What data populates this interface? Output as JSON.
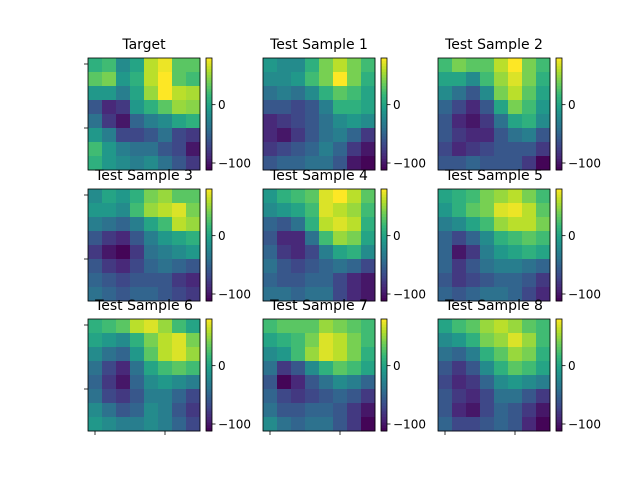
{
  "figure": {
    "colorscale": [
      "#440154",
      "#482878",
      "#3e4989",
      "#31688e",
      "#26828e",
      "#1f9e89",
      "#35b779",
      "#6ece58",
      "#b5de2b",
      "#fde725"
    ],
    "vmin": -112,
    "vmax": 80,
    "colorbar_ticks": [
      {
        "value": 0,
        "label": "0"
      },
      {
        "value": -100,
        "label": "−100"
      }
    ]
  },
  "chart_data": [
    {
      "type": "heatmap",
      "title": "Target",
      "grid": [
        [
          10,
          20,
          -20,
          0,
          60,
          75,
          30,
          30
        ],
        [
          30,
          40,
          -10,
          10,
          60,
          80,
          30,
          20
        ],
        [
          -10,
          -10,
          -30,
          0,
          50,
          80,
          60,
          55
        ],
        [
          -60,
          -90,
          -80,
          -10,
          10,
          30,
          50,
          45
        ],
        [
          -40,
          -80,
          -100,
          -50,
          -30,
          -20,
          0,
          10
        ],
        [
          -10,
          -30,
          -70,
          -70,
          -60,
          -40,
          -70,
          -80
        ],
        [
          20,
          -10,
          -30,
          -40,
          -40,
          -60,
          -70,
          -100
        ],
        [
          10,
          -10,
          -20,
          -30,
          -20,
          -40,
          -60,
          -80
        ]
      ]
    },
    {
      "type": "heatmap",
      "title": "Test Sample 1",
      "grid": [
        [
          -10,
          -20,
          -20,
          10,
          40,
          60,
          40,
          20
        ],
        [
          -20,
          -20,
          -10,
          20,
          40,
          80,
          40,
          10
        ],
        [
          -40,
          -30,
          -40,
          -20,
          10,
          30,
          20,
          0
        ],
        [
          -60,
          -60,
          -70,
          -60,
          -30,
          10,
          10,
          0
        ],
        [
          -90,
          -80,
          -70,
          -60,
          -40,
          -20,
          -10,
          -20
        ],
        [
          -90,
          -100,
          -80,
          -60,
          -40,
          -30,
          -50,
          -80
        ],
        [
          -80,
          -70,
          -60,
          -50,
          -30,
          -50,
          -80,
          -100
        ],
        [
          -60,
          -50,
          -50,
          -40,
          -40,
          -60,
          -100,
          -110
        ]
      ]
    },
    {
      "type": "heatmap",
      "title": "Test Sample 2",
      "grid": [
        [
          20,
          40,
          30,
          30,
          60,
          80,
          40,
          20
        ],
        [
          0,
          0,
          -20,
          20,
          50,
          70,
          40,
          10
        ],
        [
          -20,
          -40,
          -60,
          -20,
          40,
          60,
          30,
          0
        ],
        [
          -50,
          -70,
          -90,
          -60,
          0,
          40,
          20,
          -10
        ],
        [
          -60,
          -90,
          -100,
          -80,
          -40,
          0,
          10,
          -20
        ],
        [
          -60,
          -80,
          -90,
          -90,
          -60,
          -40,
          -30,
          -60
        ],
        [
          -70,
          -90,
          -80,
          -70,
          -60,
          -60,
          -60,
          -80
        ],
        [
          -60,
          -60,
          -50,
          -60,
          -60,
          -60,
          -80,
          -110
        ]
      ]
    },
    {
      "type": "heatmap",
      "title": "Test Sample 3",
      "grid": [
        [
          -20,
          0,
          -10,
          10,
          40,
          50,
          30,
          30
        ],
        [
          -10,
          -10,
          -20,
          20,
          50,
          60,
          70,
          40
        ],
        [
          -30,
          -40,
          -50,
          -30,
          0,
          20,
          60,
          50
        ],
        [
          -60,
          -80,
          -90,
          -60,
          -30,
          -10,
          0,
          10
        ],
        [
          -80,
          -100,
          -110,
          -80,
          -40,
          -30,
          -20,
          -10
        ],
        [
          -60,
          -80,
          -90,
          -70,
          -50,
          -40,
          -50,
          -60
        ],
        [
          -50,
          -60,
          -70,
          -60,
          -60,
          -60,
          -80,
          -90
        ],
        [
          -40,
          -50,
          -60,
          -50,
          -50,
          -60,
          -70,
          -80
        ]
      ]
    },
    {
      "type": "heatmap",
      "title": "Test Sample 4",
      "grid": [
        [
          -10,
          10,
          20,
          30,
          70,
          80,
          60,
          30
        ],
        [
          -20,
          -10,
          0,
          20,
          70,
          60,
          50,
          20
        ],
        [
          -50,
          -60,
          -40,
          10,
          60,
          70,
          60,
          10
        ],
        [
          -60,
          -90,
          -90,
          -40,
          20,
          50,
          40,
          0
        ],
        [
          -50,
          -80,
          -90,
          -70,
          -30,
          0,
          10,
          -20
        ],
        [
          -40,
          -60,
          -70,
          -60,
          -50,
          -40,
          -50,
          -70
        ],
        [
          -50,
          -60,
          -60,
          -50,
          -50,
          -70,
          -90,
          -100
        ],
        [
          -40,
          -40,
          -50,
          -40,
          -40,
          -70,
          -90,
          -100
        ]
      ]
    },
    {
      "type": "heatmap",
      "title": "Test Sample 5",
      "grid": [
        [
          0,
          10,
          20,
          40,
          50,
          60,
          40,
          20
        ],
        [
          -10,
          10,
          30,
          40,
          70,
          75,
          60,
          30
        ],
        [
          -30,
          -20,
          0,
          20,
          50,
          60,
          60,
          40
        ],
        [
          -50,
          -70,
          -50,
          -20,
          10,
          20,
          30,
          20
        ],
        [
          -50,
          -100,
          -80,
          -30,
          -10,
          0,
          10,
          0
        ],
        [
          -50,
          -80,
          -60,
          -40,
          -30,
          -30,
          -40,
          -50
        ],
        [
          -60,
          -80,
          -70,
          -60,
          -50,
          -50,
          -60,
          -80
        ],
        [
          -50,
          -60,
          -50,
          -40,
          -40,
          -50,
          -70,
          -90
        ]
      ]
    },
    {
      "type": "heatmap",
      "title": "Test Sample 6",
      "grid": [
        [
          10,
          20,
          30,
          60,
          70,
          50,
          20,
          0
        ],
        [
          0,
          -10,
          -20,
          10,
          40,
          60,
          70,
          40
        ],
        [
          -20,
          -40,
          -50,
          -10,
          30,
          60,
          70,
          50
        ],
        [
          -40,
          -70,
          -90,
          -40,
          0,
          20,
          30,
          20
        ],
        [
          -50,
          -80,
          -100,
          -50,
          -20,
          -10,
          -20,
          -30
        ],
        [
          -40,
          -70,
          -80,
          -60,
          -30,
          -30,
          -50,
          -70
        ],
        [
          -20,
          -40,
          -60,
          -50,
          -20,
          -30,
          -60,
          -80
        ],
        [
          -10,
          -20,
          -30,
          -30,
          -20,
          -30,
          -50,
          -70
        ]
      ]
    },
    {
      "type": "heatmap",
      "title": "Test Sample 7",
      "grid": [
        [
          20,
          30,
          30,
          30,
          50,
          40,
          30,
          20
        ],
        [
          0,
          10,
          20,
          40,
          70,
          60,
          40,
          20
        ],
        [
          -20,
          -10,
          20,
          50,
          70,
          60,
          40,
          10
        ],
        [
          -40,
          -80,
          -60,
          -20,
          10,
          30,
          20,
          0
        ],
        [
          -60,
          -110,
          -90,
          -60,
          -40,
          -20,
          -30,
          -50
        ],
        [
          -50,
          -70,
          -80,
          -70,
          -60,
          -50,
          -60,
          -80
        ],
        [
          -40,
          -60,
          -60,
          -50,
          -50,
          -60,
          -80,
          -100
        ],
        [
          -20,
          -40,
          -50,
          -40,
          -40,
          -60,
          -80,
          -110
        ]
      ]
    },
    {
      "type": "heatmap",
      "title": "Test Sample 8",
      "grid": [
        [
          0,
          20,
          30,
          50,
          60,
          50,
          30,
          20
        ],
        [
          -20,
          -10,
          10,
          40,
          50,
          70,
          50,
          20
        ],
        [
          -40,
          -50,
          -30,
          10,
          30,
          50,
          40,
          10
        ],
        [
          -60,
          -80,
          -60,
          -20,
          10,
          30,
          20,
          0
        ],
        [
          -70,
          -90,
          -80,
          -50,
          -20,
          -10,
          -20,
          -30
        ],
        [
          -60,
          -80,
          -90,
          -70,
          -40,
          -40,
          -60,
          -80
        ],
        [
          -60,
          -90,
          -100,
          -70,
          -50,
          -60,
          -80,
          -100
        ],
        [
          -50,
          -70,
          -70,
          -60,
          -50,
          -60,
          -90,
          -110
        ]
      ]
    }
  ]
}
